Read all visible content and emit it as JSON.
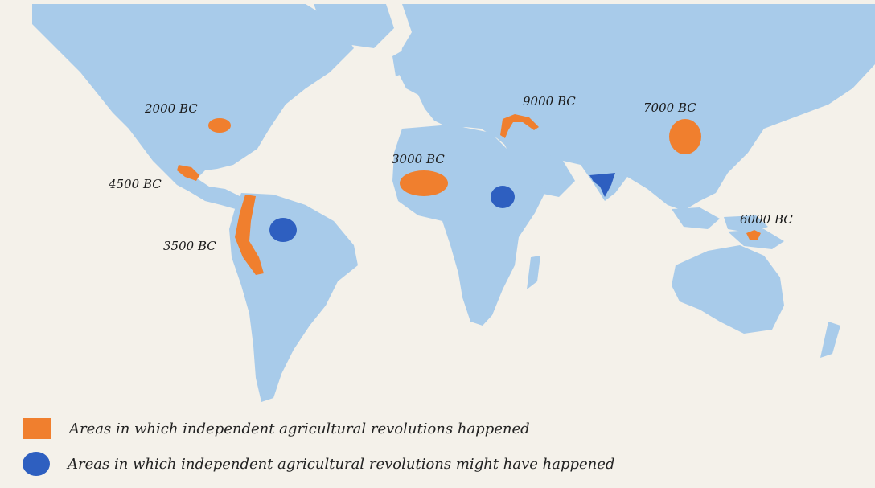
{
  "colors": {
    "ocean": "#f4f1ea",
    "land": "#a8cbea",
    "happened": "#f07f2e",
    "might_have": "#2e5fc0"
  },
  "regions": [
    {
      "id": "north-america",
      "label": "2000 BC",
      "type": "happened"
    },
    {
      "id": "mesoamerica",
      "label": "4500 BC",
      "type": "happened"
    },
    {
      "id": "andes",
      "label": "3500 BC",
      "type": "happened"
    },
    {
      "id": "amazon",
      "label": "",
      "type": "might_have"
    },
    {
      "id": "sahel",
      "label": "3000 BC",
      "type": "happened"
    },
    {
      "id": "ethiopia",
      "label": "",
      "type": "might_have"
    },
    {
      "id": "fertile-crescent",
      "label": "9000 BC",
      "type": "happened"
    },
    {
      "id": "india",
      "label": "",
      "type": "might_have"
    },
    {
      "id": "china",
      "label": "7000 BC",
      "type": "happened"
    },
    {
      "id": "new-guinea",
      "label": "6000 BC",
      "type": "happened"
    }
  ],
  "legend": {
    "happened": "Areas in which independent agricultural revolutions happened",
    "might_have": "Areas in which independent agricultural revolutions might have happened"
  }
}
